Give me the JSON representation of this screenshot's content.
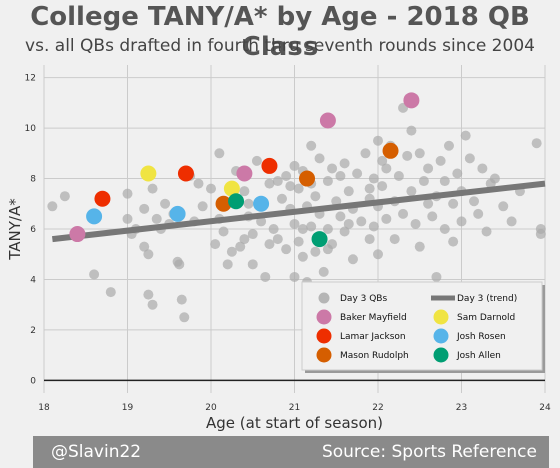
{
  "chart_data": {
    "type": "scatter",
    "title": "College TANY/A* by Age - 2018 QB Class",
    "subtitle": "vs. all QBs drafted in fourth thru seventh rounds since 2004",
    "xlabel": "Age (at start of season)",
    "ylabel": "TANY/A*",
    "xlim": [
      18,
      24
    ],
    "ylim": [
      -0.5,
      12.5
    ],
    "xticks": [
      "18",
      "19",
      "20",
      "21",
      "22",
      "23",
      "24"
    ],
    "yticks": [
      "0",
      "2",
      "4",
      "6",
      "8",
      "10",
      "12"
    ],
    "grid": true,
    "legend_position": "bottom-right",
    "background": "#f0f0f0",
    "trend": {
      "name": "Day 3 (trend)",
      "x": [
        18.1,
        24.0
      ],
      "y": [
        5.6,
        7.8
      ],
      "color": "#777777"
    },
    "day3": {
      "name": "Day 3 QBs",
      "color": "#aaaaaa",
      "points": [
        [
          18.1,
          6.9
        ],
        [
          18.25,
          7.3
        ],
        [
          18.6,
          4.2
        ],
        [
          18.8,
          3.5
        ],
        [
          19.0,
          7.4
        ],
        [
          19.0,
          6.4
        ],
        [
          19.05,
          5.8
        ],
        [
          19.1,
          6.0
        ],
        [
          19.2,
          6.8
        ],
        [
          19.2,
          5.3
        ],
        [
          19.25,
          5.0
        ],
        [
          19.25,
          3.4
        ],
        [
          19.3,
          7.6
        ],
        [
          19.3,
          3.0
        ],
        [
          19.35,
          6.4
        ],
        [
          19.4,
          6.0
        ],
        [
          19.45,
          7.0
        ],
        [
          19.5,
          6.2
        ],
        [
          19.55,
          6.6
        ],
        [
          19.6,
          4.7
        ],
        [
          19.62,
          4.6
        ],
        [
          19.65,
          3.2
        ],
        [
          19.68,
          2.5
        ],
        [
          19.75,
          8.1
        ],
        [
          19.8,
          6.3
        ],
        [
          19.85,
          7.8
        ],
        [
          19.9,
          6.9
        ],
        [
          20.0,
          7.6
        ],
        [
          20.05,
          5.4
        ],
        [
          20.1,
          9.0
        ],
        [
          20.1,
          6.4
        ],
        [
          20.15,
          5.9
        ],
        [
          20.2,
          4.6
        ],
        [
          20.25,
          5.1
        ],
        [
          20.3,
          8.3
        ],
        [
          20.35,
          5.3
        ],
        [
          20.4,
          7.5
        ],
        [
          20.4,
          5.6
        ],
        [
          20.45,
          6.5
        ],
        [
          20.5,
          5.8
        ],
        [
          20.5,
          4.6
        ],
        [
          20.55,
          8.7
        ],
        [
          20.6,
          6.3
        ],
        [
          20.65,
          4.1
        ],
        [
          20.7,
          7.8
        ],
        [
          20.7,
          5.4
        ],
        [
          20.75,
          6.0
        ],
        [
          20.8,
          5.6
        ],
        [
          20.85,
          7.2
        ],
        [
          20.9,
          8.1
        ],
        [
          20.9,
          5.2
        ],
        [
          20.95,
          6.8
        ],
        [
          21.0,
          8.5
        ],
        [
          21.0,
          6.2
        ],
        [
          21.0,
          4.1
        ],
        [
          21.05,
          7.6
        ],
        [
          21.05,
          5.5
        ],
        [
          21.1,
          8.3
        ],
        [
          21.1,
          4.9
        ],
        [
          21.15,
          6.9
        ],
        [
          21.15,
          3.9
        ],
        [
          21.2,
          9.3
        ],
        [
          21.2,
          6.1
        ],
        [
          21.25,
          7.3
        ],
        [
          21.25,
          5.1
        ],
        [
          21.3,
          8.8
        ],
        [
          21.3,
          6.6
        ],
        [
          21.35,
          4.3
        ],
        [
          21.4,
          7.9
        ],
        [
          21.4,
          6.0
        ],
        [
          21.45,
          8.4
        ],
        [
          21.45,
          5.4
        ],
        [
          21.5,
          7.1
        ],
        [
          21.5,
          3.6
        ],
        [
          21.55,
          6.5
        ],
        [
          21.6,
          8.6
        ],
        [
          21.6,
          5.9
        ],
        [
          21.65,
          7.5
        ],
        [
          21.7,
          6.8
        ],
        [
          21.7,
          4.8
        ],
        [
          21.75,
          8.2
        ],
        [
          21.8,
          6.3
        ],
        [
          21.85,
          9.0
        ],
        [
          21.9,
          7.2
        ],
        [
          21.9,
          5.6
        ],
        [
          21.95,
          8.0
        ],
        [
          22.0,
          9.5
        ],
        [
          22.0,
          6.9
        ],
        [
          22.0,
          5.0
        ],
        [
          22.05,
          7.7
        ],
        [
          22.1,
          8.4
        ],
        [
          22.1,
          6.4
        ],
        [
          22.15,
          9.3
        ],
        [
          22.2,
          7.1
        ],
        [
          22.2,
          5.6
        ],
        [
          22.25,
          8.1
        ],
        [
          22.3,
          10.8
        ],
        [
          22.3,
          6.6
        ],
        [
          22.35,
          8.9
        ],
        [
          22.4,
          7.5
        ],
        [
          22.45,
          6.2
        ],
        [
          22.5,
          9.0
        ],
        [
          22.5,
          5.3
        ],
        [
          22.55,
          7.9
        ],
        [
          22.6,
          8.4
        ],
        [
          22.65,
          6.5
        ],
        [
          22.7,
          4.1
        ],
        [
          22.7,
          7.3
        ],
        [
          22.75,
          8.7
        ],
        [
          22.8,
          6.0
        ],
        [
          22.85,
          9.3
        ],
        [
          22.9,
          7.0
        ],
        [
          22.9,
          5.5
        ],
        [
          22.95,
          8.2
        ],
        [
          23.0,
          7.5
        ],
        [
          23.0,
          6.3
        ],
        [
          23.05,
          9.7
        ],
        [
          23.1,
          8.8
        ],
        [
          23.15,
          7.1
        ],
        [
          23.2,
          6.6
        ],
        [
          23.25,
          8.4
        ],
        [
          23.3,
          5.9
        ],
        [
          23.35,
          7.8
        ],
        [
          23.4,
          8.0
        ],
        [
          23.5,
          6.9
        ],
        [
          23.6,
          6.3
        ],
        [
          23.7,
          7.5
        ],
        [
          23.9,
          9.4
        ],
        [
          23.95,
          6.0
        ],
        [
          23.95,
          5.8
        ],
        [
          21.95,
          6.1
        ],
        [
          20.8,
          7.9
        ],
        [
          21.2,
          7.8
        ],
        [
          21.55,
          8.1
        ],
        [
          22.4,
          9.9
        ],
        [
          21.9,
          7.6
        ],
        [
          20.95,
          7.7
        ],
        [
          22.6,
          7.0
        ],
        [
          21.1,
          6.0
        ],
        [
          20.45,
          7.0
        ],
        [
          22.8,
          7.9
        ],
        [
          21.4,
          5.2
        ],
        [
          21.65,
          6.2
        ],
        [
          22.05,
          8.7
        ]
      ]
    },
    "highlights": [
      {
        "name": "Baker Mayfield",
        "color": "#cc79a7",
        "points": [
          [
            18.4,
            5.8
          ],
          [
            20.4,
            8.2
          ],
          [
            21.4,
            10.3
          ],
          [
            22.4,
            11.1
          ]
        ]
      },
      {
        "name": "Sam Darnold",
        "color": "#f0e442",
        "points": [
          [
            19.25,
            8.2
          ],
          [
            20.25,
            7.6
          ]
        ]
      },
      {
        "name": "Lamar Jackson",
        "color": "#ee2e00",
        "points": [
          [
            18.7,
            7.2
          ],
          [
            19.7,
            8.2
          ],
          [
            20.7,
            8.5
          ]
        ]
      },
      {
        "name": "Josh Rosen",
        "color": "#56b4e9",
        "points": [
          [
            18.6,
            6.5
          ],
          [
            19.6,
            6.6
          ],
          [
            20.6,
            7.0
          ]
        ]
      },
      {
        "name": "Mason Rudolph",
        "color": "#d55e00",
        "points": [
          [
            20.15,
            7.0
          ],
          [
            21.15,
            8.0
          ],
          [
            22.15,
            9.1
          ]
        ]
      },
      {
        "name": "Josh Allen",
        "color": "#009e73",
        "points": [
          [
            20.3,
            7.1
          ],
          [
            21.3,
            5.6
          ]
        ]
      }
    ]
  },
  "footer": {
    "left": "@Slavin22",
    "right": "Source: Sports Reference"
  }
}
